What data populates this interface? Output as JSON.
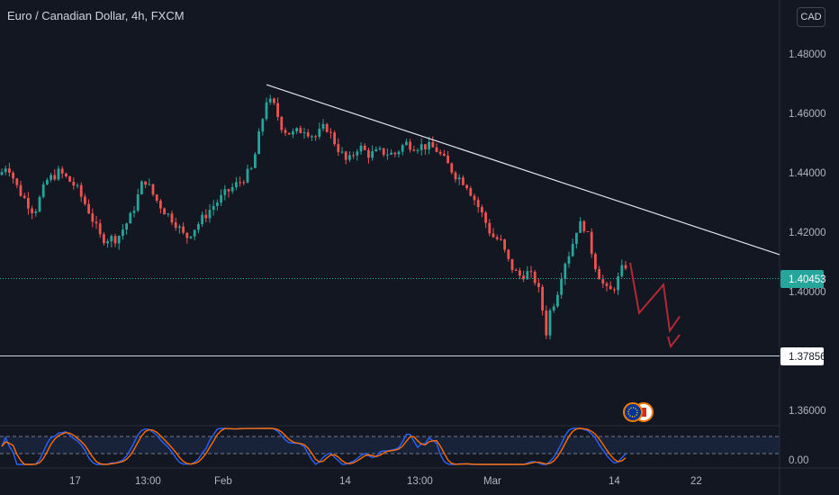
{
  "chart_title": "Euro / Canadian Dollar, 4h, FXCM",
  "currency_button": "CAD",
  "colors": {
    "background": "#131722",
    "up": "#26a69a",
    "down": "#ef5350",
    "stoch_k": "#2962ff",
    "stoch_d": "#ff6d00",
    "trendline": "#e0e3eb",
    "projection": "#b22833"
  },
  "chart_data": [
    {
      "type": "candlestick",
      "title": "Euro / Canadian Dollar, 4h, FXCM",
      "price_axis_labels": [
        "1.48000",
        "1.46000",
        "1.44000",
        "1.42000",
        "1.40000",
        "1.36000"
      ],
      "time_axis_labels": [
        "17",
        "13:00",
        "Feb",
        "14",
        "13:00",
        "Mar",
        "14",
        "22"
      ],
      "ylim": [
        1.3492,
        1.4965
      ],
      "last_price": "1.40453",
      "support_level": "1.37856",
      "price_path": [
        [
          0,
          1.436
        ],
        [
          8,
          1.44
        ],
        [
          20,
          1.431
        ],
        [
          38,
          1.423
        ],
        [
          52,
          1.434
        ],
        [
          66,
          1.437
        ],
        [
          84,
          1.432
        ],
        [
          98,
          1.424
        ],
        [
          112,
          1.414
        ],
        [
          130,
          1.414
        ],
        [
          146,
          1.422
        ],
        [
          160,
          1.435
        ],
        [
          172,
          1.428
        ],
        [
          184,
          1.423
        ],
        [
          194,
          1.42
        ],
        [
          206,
          1.414
        ],
        [
          220,
          1.419
        ],
        [
          236,
          1.425
        ],
        [
          252,
          1.43
        ],
        [
          268,
          1.434
        ],
        [
          280,
          1.438
        ],
        [
          288,
          1.45
        ],
        [
          296,
          1.462
        ],
        [
          304,
          1.46
        ],
        [
          314,
          1.452
        ],
        [
          324,
          1.45
        ],
        [
          338,
          1.452
        ],
        [
          350,
          1.449
        ],
        [
          362,
          1.453
        ],
        [
          374,
          1.446
        ],
        [
          386,
          1.44
        ],
        [
          398,
          1.446
        ],
        [
          410,
          1.443
        ],
        [
          424,
          1.444
        ],
        [
          438,
          1.443
        ],
        [
          450,
          1.447
        ],
        [
          460,
          1.446
        ],
        [
          472,
          1.446
        ],
        [
          484,
          1.445
        ],
        [
          496,
          1.44
        ],
        [
          506,
          1.436
        ],
        [
          518,
          1.433
        ],
        [
          528,
          1.427
        ],
        [
          536,
          1.422
        ],
        [
          546,
          1.415
        ],
        [
          556,
          1.413
        ],
        [
          566,
          1.405
        ],
        [
          576,
          1.401
        ],
        [
          586,
          1.402
        ],
        [
          596,
          1.399
        ],
        [
          602,
          1.391
        ],
        [
          606,
          1.38
        ],
        [
          610,
          1.388
        ],
        [
          618,
          1.394
        ],
        [
          626,
          1.405
        ],
        [
          634,
          1.41
        ],
        [
          642,
          1.419
        ],
        [
          650,
          1.418
        ],
        [
          656,
          1.411
        ],
        [
          662,
          1.404
        ],
        [
          670,
          1.398
        ],
        [
          676,
          1.395
        ],
        [
          684,
          1.398
        ],
        [
          692,
          1.404
        ],
        [
          696,
          1.405
        ]
      ],
      "trendline": [
        [
          296,
          1.4672
        ],
        [
          866,
          1.4084
        ]
      ],
      "projection": [
        [
          700,
          1.4056
        ],
        [
          710,
          1.3882
        ],
        [
          737,
          1.398
        ],
        [
          744,
          1.382
        ],
        [
          755,
          1.387
        ]
      ],
      "stochastic_ylim": [
        0,
        100
      ],
      "stochastic_label": "0.00"
    }
  ]
}
